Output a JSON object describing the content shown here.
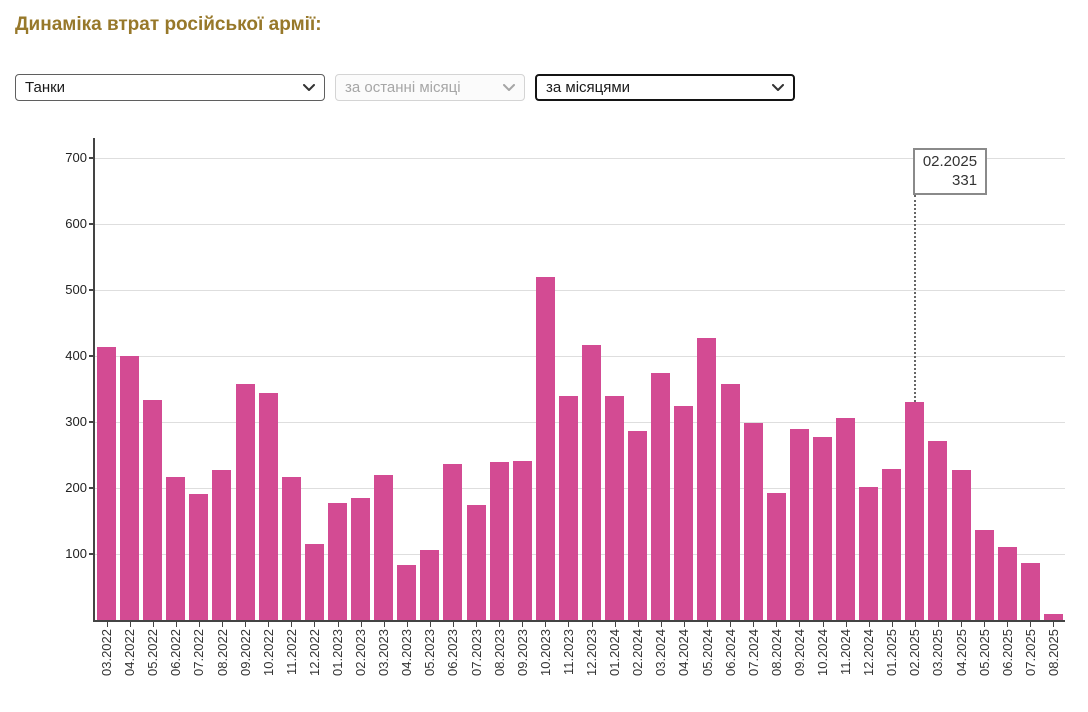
{
  "page": {
    "title": "Динаміка втрат російської армії:"
  },
  "controls": {
    "category_select": {
      "value": "Танки",
      "icon": "chevron-down"
    },
    "period_select": {
      "value": "за останні місяці",
      "icon": "chevron-down",
      "disabled": true
    },
    "grouping_select": {
      "value": "за місяцями",
      "icon": "chevron-down",
      "focused": true
    }
  },
  "tooltip": {
    "label": "02.2025",
    "value": "331"
  },
  "colors": {
    "bar": "#d34b93",
    "title": "#97782a",
    "grid": "#dedede",
    "axis": "#444444"
  },
  "chart_data": {
    "type": "bar",
    "title": "",
    "xlabel": "",
    "ylabel": "",
    "categories": [
      "03.2022",
      "04.2022",
      "05.2022",
      "06.2022",
      "07.2022",
      "08.2022",
      "09.2022",
      "10.2022",
      "11.2022",
      "12.2022",
      "01.2023",
      "02.2023",
      "03.2023",
      "04.2023",
      "05.2023",
      "06.2023",
      "07.2023",
      "08.2023",
      "09.2023",
      "10.2023",
      "11.2023",
      "12.2023",
      "01.2024",
      "02.2024",
      "03.2024",
      "04.2024",
      "05.2024",
      "06.2024",
      "07.2024",
      "08.2024",
      "09.2024",
      "10.2024",
      "11.2024",
      "12.2024",
      "01.2025",
      "02.2025",
      "03.2025",
      "04.2025",
      "05.2025",
      "06.2025",
      "07.2025",
      "08.2025"
    ],
    "values": [
      413,
      400,
      334,
      216,
      191,
      227,
      357,
      344,
      216,
      115,
      177,
      185,
      220,
      83,
      106,
      236,
      174,
      240,
      241,
      520,
      340,
      417,
      339,
      287,
      375,
      324,
      427,
      357,
      299,
      192,
      290,
      278,
      306,
      202,
      229,
      331,
      271,
      228,
      137,
      111,
      86,
      9
    ],
    "ylim": [
      0,
      730
    ],
    "yticks": [
      100,
      200,
      300,
      400,
      500,
      600,
      700
    ],
    "grid": true,
    "legend": false,
    "bar_color": "#d34b93",
    "highlight": {
      "category": "02.2025",
      "value": 331
    }
  }
}
